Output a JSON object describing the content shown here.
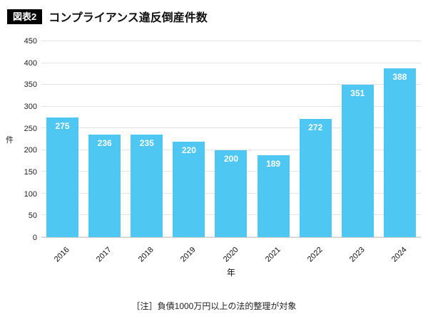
{
  "header": {
    "badge": "図表2",
    "title": "コンプライアンス違反倒産件数"
  },
  "chart_data": {
    "type": "bar",
    "title": "コンプライアンス違反倒産件数",
    "categories": [
      "2016",
      "2017",
      "2018",
      "2019",
      "2020",
      "2021",
      "2022",
      "2023",
      "2024"
    ],
    "values": [
      275,
      236,
      235,
      220,
      200,
      189,
      272,
      351,
      388
    ],
    "xlabel": "年",
    "ylabel": "件",
    "ylim": [
      0,
      450
    ],
    "ytick_step": 50,
    "grid": true,
    "legend": "none",
    "bar_color": "#4ec7f3",
    "value_label_color": "#ffffff"
  },
  "footer": {
    "note": "［注］負債1000万円以上の法的整理が対象"
  }
}
